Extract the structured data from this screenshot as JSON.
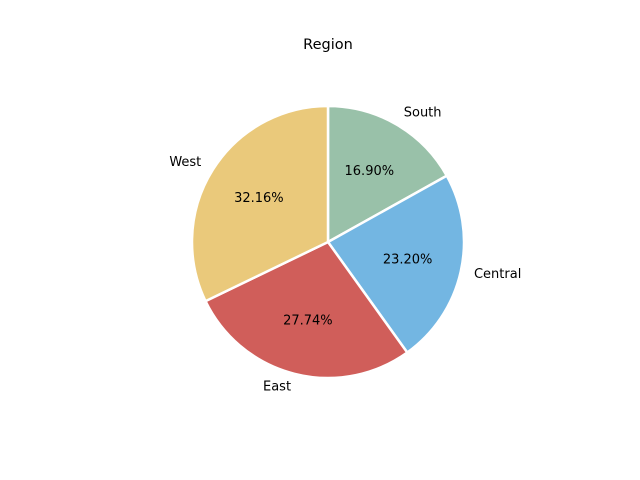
{
  "chart_data": {
    "type": "pie",
    "title": "Region",
    "start_angle_deg": 90,
    "direction": "clockwise",
    "slices": [
      {
        "label": "South",
        "value": 16.9,
        "pct_label": "16.90%",
        "color": "#99c1a9"
      },
      {
        "label": "Central",
        "value": 23.2,
        "pct_label": "23.20%",
        "color": "#73b6e2"
      },
      {
        "label": "East",
        "value": 27.74,
        "pct_label": "27.74%",
        "color": "#d05e5a"
      },
      {
        "label": "West",
        "value": 32.16,
        "pct_label": "32.16%",
        "color": "#eac97b"
      }
    ],
    "edge_color": "#ffffff"
  }
}
